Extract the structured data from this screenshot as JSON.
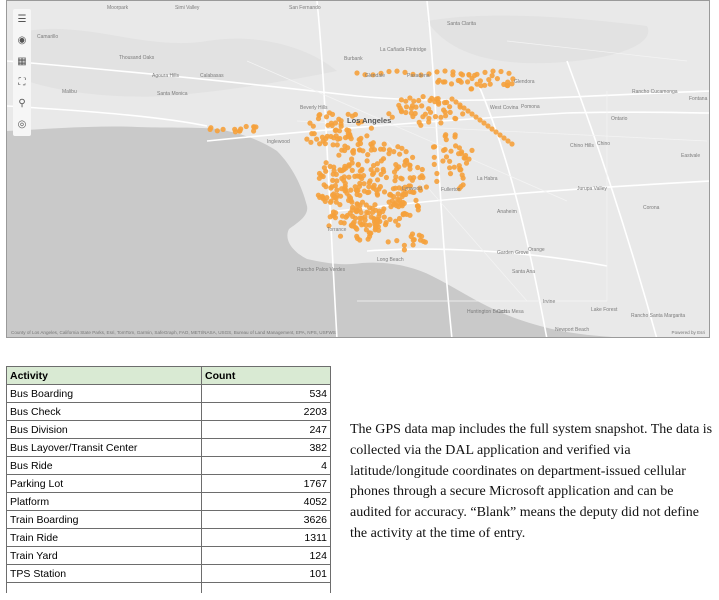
{
  "map": {
    "toolbar_icons": [
      "menu-icon",
      "layers-icon",
      "basemap-icon",
      "fullscreen-icon",
      "search-icon",
      "locate-icon"
    ],
    "places": [
      {
        "name": "Moorpark",
        "cls": ""
      },
      {
        "name": "Simi Valley",
        "cls": ""
      },
      {
        "name": "San Fernando",
        "cls": ""
      },
      {
        "name": "Camarillo",
        "cls": ""
      },
      {
        "name": "Thousand Oaks",
        "cls": ""
      },
      {
        "name": "Agoura Hills",
        "cls": ""
      },
      {
        "name": "Calabasas",
        "cls": ""
      },
      {
        "name": "Burbank",
        "cls": ""
      },
      {
        "name": "La Cañada Flintridge",
        "cls": ""
      },
      {
        "name": "Glendale",
        "cls": ""
      },
      {
        "name": "Pasadena",
        "cls": ""
      },
      {
        "name": "Glendora",
        "cls": ""
      },
      {
        "name": "Rancho Cucamonga",
        "cls": ""
      },
      {
        "name": "Fontana",
        "cls": ""
      },
      {
        "name": "Ontario",
        "cls": ""
      },
      {
        "name": "Pomona",
        "cls": ""
      },
      {
        "name": "West Covina",
        "cls": ""
      },
      {
        "name": "Beverly Hills",
        "cls": ""
      },
      {
        "name": "Los Angeles",
        "cls": "big"
      },
      {
        "name": "Chino",
        "cls": ""
      },
      {
        "name": "Chino Hills",
        "cls": ""
      },
      {
        "name": "Inglewood",
        "cls": ""
      },
      {
        "name": "La Habra",
        "cls": ""
      },
      {
        "name": "Anaheim",
        "cls": ""
      },
      {
        "name": "Fullerton",
        "cls": ""
      },
      {
        "name": "Torrance",
        "cls": ""
      },
      {
        "name": "Long Beach",
        "cls": ""
      },
      {
        "name": "Garden Grove",
        "cls": ""
      },
      {
        "name": "Orange",
        "cls": ""
      },
      {
        "name": "Santa Ana",
        "cls": ""
      },
      {
        "name": "Rancho Palos Verdes",
        "cls": ""
      },
      {
        "name": "Irvine",
        "cls": ""
      },
      {
        "name": "Huntington Beach",
        "cls": ""
      },
      {
        "name": "Costa Mesa",
        "cls": ""
      },
      {
        "name": "Lake Forest",
        "cls": ""
      },
      {
        "name": "Rancho Santa Margarita",
        "cls": ""
      },
      {
        "name": "Newport Beach",
        "cls": ""
      },
      {
        "name": "Malibu",
        "cls": ""
      },
      {
        "name": "Santa Monica",
        "cls": ""
      },
      {
        "name": "Jurupa Valley",
        "cls": ""
      },
      {
        "name": "Corona",
        "cls": ""
      },
      {
        "name": "Lynwood",
        "cls": ""
      },
      {
        "name": "Eastvale",
        "cls": ""
      },
      {
        "name": "Santa Clarita",
        "cls": ""
      }
    ],
    "attribution": "County of Los Angeles, California State Parks, Esri, TomTom, Garmin, SafeGraph, FAO, METI/NASA, USGS, Bureau of Land Management, EPA, NPS, USFWS",
    "powered_by": "Powered by Esri",
    "colors": {
      "land": "#e9e9e9",
      "water": "#c9c9c9",
      "road": "#ffffff",
      "point": "#f5a13c"
    }
  },
  "table": {
    "headers": {
      "activity": "Activity",
      "count": "Count"
    },
    "rows": [
      {
        "activity": "Bus Boarding",
        "count": "534"
      },
      {
        "activity": "Bus Check",
        "count": "2203"
      },
      {
        "activity": "Bus Division",
        "count": "247"
      },
      {
        "activity": "Bus Layover/Transit Center",
        "count": "382"
      },
      {
        "activity": "Bus Ride",
        "count": "4"
      },
      {
        "activity": "Parking Lot",
        "count": "1767"
      },
      {
        "activity": "Platform",
        "count": "4052"
      },
      {
        "activity": "Train Boarding",
        "count": "3626"
      },
      {
        "activity": "Train Ride",
        "count": "1311"
      },
      {
        "activity": "Train Yard",
        "count": "124"
      },
      {
        "activity": "TPS Station",
        "count": "101"
      }
    ]
  },
  "note": "The GPS data map includes the full system snapshot. The data is collected via the DAL application and verified via latitude/longitude coordinates on department-issued cellular phones through a secure Microsoft application and can be audited for accuracy. “Blank” means the deputy did not define the activity at the time of entry."
}
